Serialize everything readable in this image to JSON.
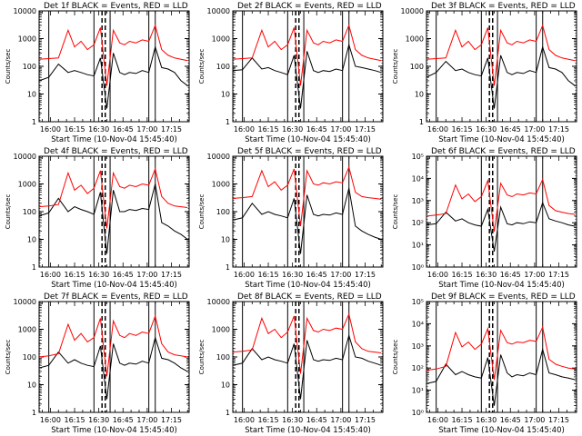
{
  "figure": {
    "layout": "3x3 grid",
    "colors": {
      "events": "#000000",
      "lld": "#ff0000",
      "axes": "#000000",
      "background": "#ffffff"
    }
  },
  "chart_data": [
    {
      "type": "line",
      "title": "Det 1f BLACK = Events, RED = LLD",
      "xlabel": "Start Time (10-Nov-04 15:45:40)",
      "ylabel": "Counts/sec",
      "x_tick_labels": [
        "16:00",
        "16:15",
        "16:30",
        "16:45",
        "17:00",
        "17:15"
      ],
      "y_scale": "log",
      "ylim": [
        1,
        10000
      ],
      "y_tick_labels": [
        "1",
        "10",
        "100",
        "1000",
        "10000"
      ],
      "x_minutes_since_start": [
        0,
        6,
        12,
        18,
        22,
        26,
        30,
        34,
        38,
        42,
        46,
        50,
        53,
        56,
        60,
        64,
        68,
        72,
        76,
        80,
        84,
        88,
        92
      ],
      "series": [
        {
          "name": "Events",
          "color": "#000000",
          "y": [
            30,
            40,
            120,
            60,
            70,
            60,
            50,
            45,
            200,
            3,
            300,
            60,
            50,
            60,
            55,
            70,
            60,
            500,
            90,
            80,
            60,
            30,
            20
          ]
        },
        {
          "name": "LLD",
          "color": "#ff0000",
          "y": [
            180,
            190,
            200,
            2000,
            500,
            800,
            400,
            600,
            2500,
            20,
            2000,
            700,
            600,
            800,
            700,
            900,
            800,
            3000,
            400,
            250,
            200,
            180,
            160
          ]
        }
      ],
      "vertical_lines_minutes": {
        "solid": [
          6,
          34,
          44,
          68,
          72
        ],
        "dashed": [
          39,
          41
        ]
      }
    },
    {
      "type": "line",
      "title": "Det 2f BLACK = Events, RED = LLD",
      "xlabel": "Start Time (10-Nov-04 15:45:40)",
      "ylabel": "Counts/sec",
      "x_tick_labels": [
        "16:00",
        "16:15",
        "16:30",
        "16:45",
        "17:00",
        "17:15"
      ],
      "y_scale": "log",
      "ylim": [
        1,
        10000
      ],
      "y_tick_labels": [
        "1",
        "10",
        "100",
        "1000",
        "10000"
      ],
      "x_minutes_since_start": [
        0,
        6,
        12,
        18,
        22,
        26,
        30,
        34,
        38,
        42,
        46,
        50,
        53,
        56,
        60,
        64,
        68,
        72,
        76,
        80,
        84,
        88,
        92
      ],
      "series": [
        {
          "name": "Events",
          "color": "#000000",
          "y": [
            70,
            75,
            200,
            80,
            90,
            70,
            60,
            50,
            250,
            3,
            350,
            70,
            60,
            70,
            65,
            80,
            70,
            600,
            100,
            90,
            80,
            70,
            60
          ]
        },
        {
          "name": "LLD",
          "color": "#ff0000",
          "y": [
            180,
            190,
            200,
            2000,
            500,
            800,
            400,
            600,
            2500,
            20,
            2000,
            700,
            600,
            800,
            700,
            900,
            800,
            3000,
            400,
            250,
            200,
            180,
            160
          ]
        }
      ],
      "vertical_lines_minutes": {
        "solid": [
          6,
          34,
          44,
          68,
          72
        ],
        "dashed": [
          39,
          41
        ]
      }
    },
    {
      "type": "line",
      "title": "Det 3f BLACK = Events, RED = LLD",
      "xlabel": "Start Time (10-Nov-04 15:45:40)",
      "ylabel": "Counts/sec",
      "x_tick_labels": [
        "16:00",
        "16:15",
        "16:30",
        "16:45",
        "17:00",
        "17:15"
      ],
      "y_scale": "log",
      "ylim": [
        1,
        10000
      ],
      "y_tick_labels": [
        "1",
        "10",
        "100",
        "1000",
        "10000"
      ],
      "x_minutes_since_start": [
        0,
        6,
        12,
        18,
        22,
        26,
        30,
        34,
        38,
        42,
        46,
        50,
        53,
        56,
        60,
        64,
        68,
        72,
        76,
        80,
        84,
        88,
        92
      ],
      "series": [
        {
          "name": "Events",
          "color": "#000000",
          "y": [
            40,
            60,
            150,
            70,
            80,
            60,
            50,
            45,
            200,
            3,
            250,
            60,
            50,
            60,
            55,
            70,
            60,
            500,
            90,
            80,
            60,
            30,
            20
          ]
        },
        {
          "name": "LLD",
          "color": "#ff0000",
          "y": [
            180,
            190,
            200,
            2000,
            500,
            800,
            400,
            600,
            2500,
            20,
            2000,
            700,
            600,
            800,
            700,
            900,
            800,
            3000,
            400,
            250,
            200,
            180,
            160
          ]
        }
      ],
      "vertical_lines_minutes": {
        "solid": [
          6,
          34,
          44,
          68,
          72
        ],
        "dashed": [
          39,
          41
        ]
      }
    },
    {
      "type": "line",
      "title": "Det 4f BLACK = Events, RED = LLD",
      "xlabel": "Start Time (10-Nov-04 15:45:40)",
      "ylabel": "Counts/sec",
      "x_tick_labels": [
        "16:00",
        "16:15",
        "16:30",
        "16:45",
        "17:00",
        "17:15"
      ],
      "y_scale": "log",
      "ylim": [
        1,
        10000
      ],
      "y_tick_labels": [
        "1",
        "10",
        "100",
        "1000",
        "10000"
      ],
      "x_minutes_since_start": [
        0,
        6,
        12,
        18,
        22,
        26,
        30,
        34,
        38,
        42,
        46,
        50,
        53,
        56,
        60,
        64,
        68,
        72,
        76,
        80,
        84,
        88,
        92
      ],
      "series": [
        {
          "name": "Events",
          "color": "#000000",
          "y": [
            70,
            90,
            300,
            100,
            150,
            120,
            100,
            80,
            500,
            3,
            600,
            100,
            100,
            120,
            110,
            130,
            120,
            1000,
            40,
            30,
            20,
            15,
            10
          ]
        },
        {
          "name": "LLD",
          "color": "#ff0000",
          "y": [
            150,
            160,
            180,
            2500,
            600,
            900,
            450,
            700,
            3000,
            25,
            2500,
            800,
            700,
            900,
            800,
            1000,
            900,
            3500,
            350,
            200,
            160,
            150,
            140
          ]
        }
      ],
      "vertical_lines_minutes": {
        "solid": [
          6,
          34,
          44,
          68,
          72
        ],
        "dashed": [
          39,
          41
        ]
      }
    },
    {
      "type": "line",
      "title": "Det 5f BLACK = Events, RED = LLD",
      "xlabel": "Start Time (10-Nov-04 15:45:40)",
      "ylabel": "Counts/sec",
      "x_tick_labels": [
        "16:00",
        "16:15",
        "16:30",
        "16:45",
        "17:00",
        "17:15"
      ],
      "y_scale": "log",
      "ylim": [
        1,
        10000
      ],
      "y_tick_labels": [
        "1",
        "10",
        "100",
        "1000",
        "10000"
      ],
      "x_minutes_since_start": [
        0,
        6,
        12,
        18,
        22,
        26,
        30,
        34,
        38,
        42,
        46,
        50,
        53,
        56,
        60,
        64,
        68,
        72,
        76,
        80,
        84,
        88,
        92
      ],
      "series": [
        {
          "name": "Events",
          "color": "#000000",
          "y": [
            50,
            60,
            200,
            80,
            100,
            80,
            70,
            60,
            300,
            3,
            400,
            80,
            70,
            80,
            75,
            90,
            80,
            700,
            30,
            20,
            15,
            12,
            10
          ]
        },
        {
          "name": "LLD",
          "color": "#ff0000",
          "y": [
            300,
            320,
            350,
            3000,
            800,
            1200,
            600,
            900,
            3500,
            30,
            3000,
            1000,
            900,
            1100,
            1000,
            1200,
            1100,
            4000,
            500,
            350,
            320,
            300,
            280
          ]
        }
      ],
      "vertical_lines_minutes": {
        "solid": [
          6,
          34,
          44,
          68,
          72
        ],
        "dashed": [
          39,
          41
        ]
      }
    },
    {
      "type": "line",
      "title": "Det 6f BLACK = Events, RED = LLD",
      "xlabel": "Start Time (10-Nov-04 15:45:40)",
      "ylabel": "Counts/sec",
      "x_tick_labels": [
        "16:00",
        "16:15",
        "16:30",
        "16:45",
        "17:00",
        "17:15"
      ],
      "y_scale": "log",
      "ylim": [
        1,
        100000
      ],
      "y_tick_labels": [
        "10⁰",
        "10¹",
        "10²",
        "10³",
        "10⁴",
        "10⁵"
      ],
      "x_minutes_since_start": [
        0,
        6,
        12,
        18,
        22,
        26,
        30,
        34,
        38,
        42,
        46,
        50,
        53,
        56,
        60,
        64,
        68,
        72,
        76,
        80,
        84,
        88,
        92
      ],
      "series": [
        {
          "name": "Events",
          "color": "#000000",
          "y": [
            80,
            90,
            300,
            120,
            150,
            100,
            80,
            70,
            400,
            5,
            500,
            90,
            80,
            100,
            90,
            110,
            100,
            800,
            150,
            120,
            100,
            80,
            70
          ]
        },
        {
          "name": "LLD",
          "color": "#ff0000",
          "y": [
            200,
            220,
            260,
            5000,
            1200,
            2000,
            900,
            1500,
            8000,
            40,
            6000,
            1800,
            1500,
            2000,
            1800,
            2200,
            2000,
            9000,
            600,
            350,
            300,
            260,
            240
          ]
        }
      ],
      "vertical_lines_minutes": {
        "solid": [
          6,
          34,
          44,
          68,
          72
        ],
        "dashed": [
          39,
          41
        ]
      }
    },
    {
      "type": "line",
      "title": "Det 7f BLACK = Events, RED = LLD",
      "xlabel": "Start Time (10-Nov-04 15:45:40)",
      "ylabel": "Counts/sec",
      "x_tick_labels": [
        "16:00",
        "16:15",
        "16:30",
        "16:45",
        "17:00",
        "17:15"
      ],
      "y_scale": "log",
      "ylim": [
        1,
        10000
      ],
      "y_tick_labels": [
        "1",
        "10",
        "100",
        "1000",
        "10000"
      ],
      "x_minutes_since_start": [
        0,
        6,
        12,
        18,
        22,
        26,
        30,
        34,
        38,
        42,
        46,
        50,
        53,
        56,
        60,
        64,
        68,
        72,
        76,
        80,
        84,
        88,
        92
      ],
      "series": [
        {
          "name": "Events",
          "color": "#000000",
          "y": [
            40,
            50,
            150,
            60,
            80,
            60,
            50,
            45,
            250,
            3,
            300,
            60,
            50,
            60,
            55,
            70,
            60,
            500,
            90,
            80,
            60,
            40,
            30
          ]
        },
        {
          "name": "LLD",
          "color": "#ff0000",
          "y": [
            100,
            110,
            130,
            1500,
            400,
            700,
            350,
            500,
            2500,
            20,
            2000,
            600,
            500,
            700,
            600,
            800,
            700,
            3000,
            300,
            150,
            120,
            110,
            100
          ]
        }
      ],
      "vertical_lines_minutes": {
        "solid": [
          6,
          34,
          44,
          68,
          72
        ],
        "dashed": [
          39,
          41
        ]
      }
    },
    {
      "type": "line",
      "title": "Det 8f BLACK = Events, RED = LLD",
      "xlabel": "Start Time (10-Nov-04 15:45:40)",
      "ylabel": "Counts/sec",
      "x_tick_labels": [
        "16:00",
        "16:15",
        "16:30",
        "16:45",
        "17:00",
        "17:15"
      ],
      "y_scale": "log",
      "ylim": [
        1,
        10000
      ],
      "y_tick_labels": [
        "1",
        "10",
        "100",
        "1000",
        "10000"
      ],
      "x_minutes_since_start": [
        0,
        6,
        12,
        18,
        22,
        26,
        30,
        34,
        38,
        42,
        46,
        50,
        53,
        56,
        60,
        64,
        68,
        72,
        76,
        80,
        84,
        88,
        92
      ],
      "series": [
        {
          "name": "Events",
          "color": "#000000",
          "y": [
            50,
            60,
            200,
            80,
            100,
            80,
            70,
            60,
            300,
            3,
            400,
            80,
            70,
            80,
            75,
            90,
            80,
            600,
            100,
            90,
            70,
            60,
            50
          ]
        },
        {
          "name": "LLD",
          "color": "#ff0000",
          "y": [
            150,
            160,
            180,
            2500,
            700,
            1000,
            500,
            800,
            3000,
            25,
            2500,
            900,
            800,
            1000,
            900,
            1100,
            1000,
            3500,
            350,
            200,
            160,
            150,
            140
          ]
        }
      ],
      "vertical_lines_minutes": {
        "solid": [
          6,
          34,
          44,
          68,
          72
        ],
        "dashed": [
          39,
          41
        ]
      }
    },
    {
      "type": "line",
      "title": "Det 9f BLACK = Events, RED = LLD",
      "xlabel": "Start Time (10-Nov-04 15:45:40)",
      "ylabel": "Counts/sec",
      "x_tick_labels": [
        "16:00",
        "16:15",
        "16:30",
        "16:45",
        "17:00",
        "17:15"
      ],
      "y_scale": "log",
      "ylim": [
        1,
        100000
      ],
      "y_tick_labels": [
        "10⁰",
        "10¹",
        "10²",
        "10³",
        "10⁴",
        "10⁵"
      ],
      "x_minutes_since_start": [
        0,
        6,
        12,
        18,
        22,
        26,
        30,
        34,
        38,
        42,
        46,
        50,
        53,
        56,
        60,
        64,
        68,
        72,
        76,
        80,
        84,
        88,
        92
      ],
      "series": [
        {
          "name": "Events",
          "color": "#000000",
          "y": [
            20,
            25,
            150,
            50,
            70,
            50,
            40,
            35,
            300,
            2,
            400,
            60,
            40,
            50,
            45,
            60,
            50,
            700,
            60,
            50,
            40,
            35,
            30
          ]
        },
        {
          "name": "LLD",
          "color": "#ff0000",
          "y": [
            80,
            90,
            120,
            4000,
            900,
            1500,
            700,
            1200,
            6000,
            30,
            5000,
            1400,
            1200,
            1500,
            1400,
            1800,
            1600,
            7000,
            250,
            150,
            120,
            100,
            90
          ]
        }
      ],
      "vertical_lines_minutes": {
        "solid": [
          6,
          34,
          44,
          68,
          72
        ],
        "dashed": [
          39,
          41
        ]
      }
    }
  ]
}
